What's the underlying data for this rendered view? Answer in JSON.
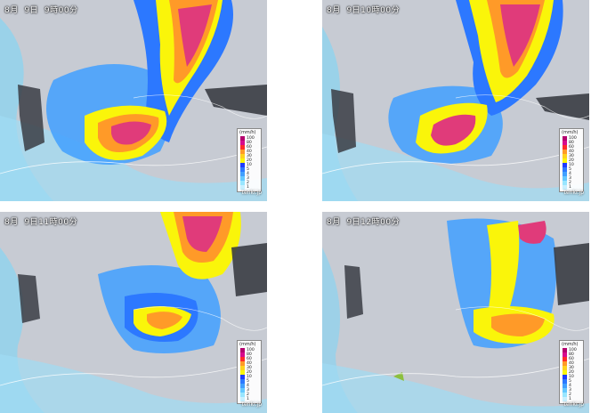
{
  "panels": [
    {
      "timestamp": "8月  9日  9時00分"
    },
    {
      "timestamp": "8月  9日10時00分"
    },
    {
      "timestamp": "8月  9日11時00分"
    },
    {
      "timestamp": "8月  9日12時00分"
    }
  ],
  "legend": {
    "unit": "(mm/h)",
    "levels": [
      {
        "label": "100",
        "color": "#b4006e"
      },
      {
        "label": "80",
        "color": "#d70a8c"
      },
      {
        "label": "60",
        "color": "#ff2a2a"
      },
      {
        "label": "40",
        "color": "#ff9a28"
      },
      {
        "label": "30",
        "color": "#ffd21e"
      },
      {
        "label": "20",
        "color": "#faf50a"
      },
      {
        "label": "10",
        "color": "#1e3cff"
      },
      {
        "label": "5",
        "color": "#2c78ff"
      },
      {
        "label": "4",
        "color": "#41a0ff"
      },
      {
        "label": "3",
        "color": "#64c8ff"
      },
      {
        "label": "2",
        "color": "#99e6ff"
      },
      {
        "label": "1",
        "color": "#c8f0ff"
      }
    ]
  },
  "credit": "tenki.jp"
}
